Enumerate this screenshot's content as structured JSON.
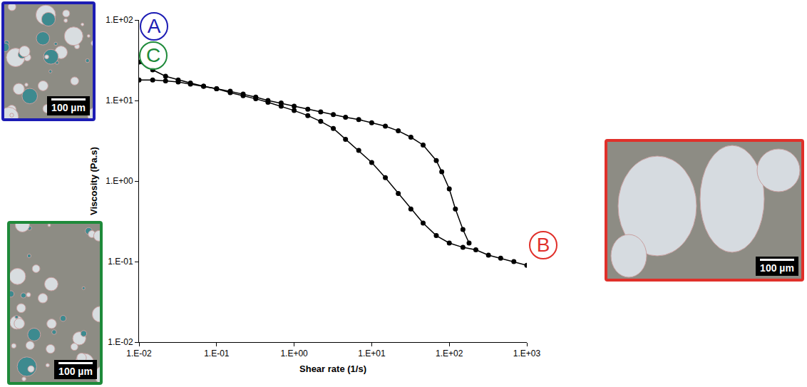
{
  "chart_data": {
    "type": "line",
    "x_label": "Shear rate (1/s)",
    "y_label": "Viscosity (Pa.s)",
    "log": true,
    "grid": false,
    "marker": "circle",
    "line_style": "solid",
    "xlim": [
      0.01,
      1000
    ],
    "ylim": [
      0.01,
      100
    ],
    "xticks": [
      {
        "value": 0.01,
        "label": "1.E-02"
      },
      {
        "value": 0.1,
        "label": "1.E-01"
      },
      {
        "value": 1,
        "label": "1.E+00"
      },
      {
        "value": 10,
        "label": "1.E+01"
      },
      {
        "value": 100,
        "label": "1.E+02"
      },
      {
        "value": 1000,
        "label": "1.E+03"
      }
    ],
    "yticks": [
      {
        "value": 0.01,
        "label": "1.E-02"
      },
      {
        "value": 0.1,
        "label": "1.E-01"
      },
      {
        "value": 1,
        "label": "1.E+00"
      },
      {
        "value": 10,
        "label": "1.E+01"
      },
      {
        "value": 100,
        "label": "1.E+02"
      }
    ],
    "series": [
      {
        "color": "#000000",
        "x": [
          0.01,
          0.015,
          0.022,
          0.032,
          0.046,
          0.068,
          0.1,
          0.15,
          0.22,
          0.32,
          0.46,
          0.68,
          1,
          1.5,
          2.2,
          3.2,
          4.6,
          6.8,
          10,
          15,
          22,
          32,
          46,
          68,
          100,
          150,
          220,
          320,
          460,
          680,
          1000
        ],
        "values": [
          30,
          24,
          20,
          18,
          16.5,
          15,
          14,
          12.5,
          11.5,
          10.5,
          9.5,
          8.5,
          7.5,
          6.5,
          5.5,
          4.5,
          3.3,
          2.4,
          1.7,
          1.1,
          0.7,
          0.45,
          0.3,
          0.21,
          0.17,
          0.15,
          0.14,
          0.12,
          0.11,
          0.1,
          0.09
        ]
      },
      {
        "color": "#000000",
        "x": [
          180,
          150,
          120,
          100,
          80,
          68,
          46,
          32,
          22,
          15,
          10,
          6.8,
          4.6,
          3.2,
          2.2,
          1.5,
          1,
          0.68,
          0.46,
          0.32,
          0.22,
          0.15,
          0.1,
          0.068,
          0.046,
          0.032,
          0.022,
          0.015,
          0.01
        ],
        "values": [
          0.17,
          0.25,
          0.45,
          0.8,
          1.3,
          1.8,
          2.8,
          3.5,
          4.2,
          4.8,
          5.3,
          5.8,
          6.2,
          6.7,
          7.2,
          7.8,
          8.5,
          9.3,
          10,
          11,
          12,
          13,
          14,
          15,
          16,
          17,
          17.5,
          18,
          18
        ]
      }
    ],
    "annotations": [
      {
        "text": "A",
        "color": "#1c1cb4"
      },
      {
        "text": "C",
        "color": "#1e8a3a"
      },
      {
        "text": "B",
        "color": "#e0302a"
      }
    ]
  },
  "micrographs": [
    {
      "color": "#1c1cb4",
      "scale_bar": "100 µm"
    },
    {
      "color": "#1e8a3a",
      "scale_bar": "100 µm"
    },
    {
      "color": "#e0302a",
      "scale_bar": "100 µm"
    }
  ]
}
